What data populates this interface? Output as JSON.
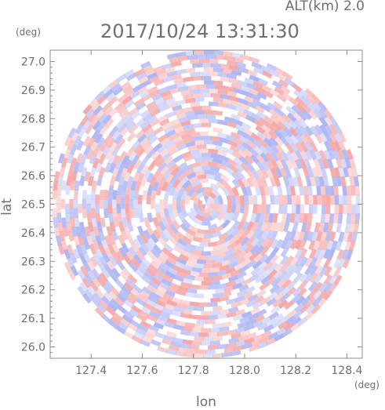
{
  "header": {
    "altitude_label": "ALT(km)  2.0",
    "timestamp": "2017/10/24  13:31:30"
  },
  "chart_data": {
    "type": "heatmap",
    "title": "",
    "xlabel": "lon",
    "ylabel": "lat",
    "x_unit": "(deg)",
    "y_unit": "(deg)",
    "xlim": [
      127.24,
      128.46
    ],
    "ylim": [
      25.96,
      27.04
    ],
    "x_ticks": [
      "127.4",
      "127.6",
      "127.8",
      "128.0",
      "128.2",
      "128.4"
    ],
    "y_ticks": [
      "27.0",
      "26.9",
      "26.8",
      "26.7",
      "26.6",
      "26.5",
      "26.4",
      "26.3",
      "26.2",
      "26.1",
      "26.0"
    ],
    "radar_center": {
      "lon": 127.85,
      "lat": 26.5
    },
    "radar_range_lat_deg": 0.54,
    "field": "range-gated radial pattern, alternating positive (red) and negative (blue) values",
    "colors": {
      "positive": "#f4a3a3",
      "negative": "#a9b1f2",
      "neutral": "#ffffff",
      "axis": "#8c8c8c",
      "text": "#6f6f6f"
    }
  }
}
